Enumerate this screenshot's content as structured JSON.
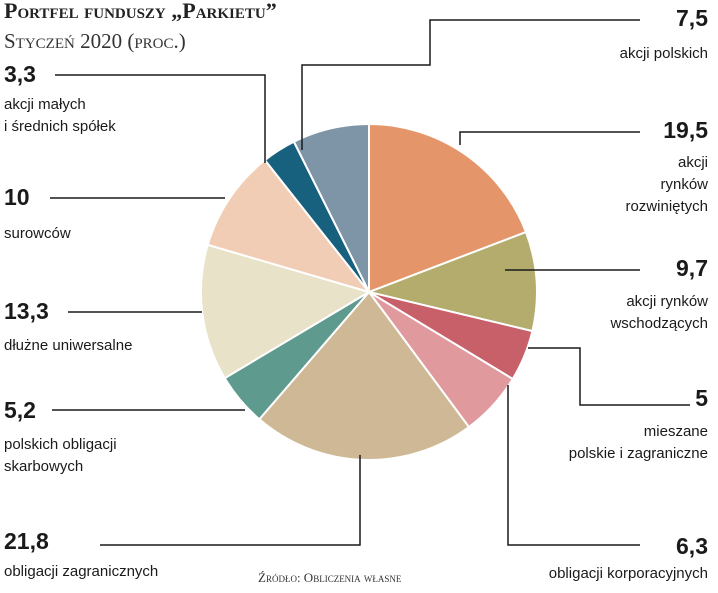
{
  "chart_data": {
    "type": "pie",
    "title": "Portfel funduszy „Parkietu”",
    "subtitle": "Styczeń 2020 (proc.)",
    "source": "Źródło: Obliczenia własne",
    "categories": [
      "akcji polskich",
      "akcji\nrynków\nrozwiniętych",
      "akcji rynków\nwschodzących",
      "mieszane\npolskie i zagraniczne",
      "obligacji korporacyjnych",
      "obligacji zagranicznych",
      "polskich obligacji\nskarbowych",
      "dłużne uniwersalne",
      "surowców",
      "akcji małych\ni średnich spółek"
    ],
    "values": [
      7.5,
      19.5,
      9.7,
      5,
      6.3,
      21.8,
      5.2,
      13.3,
      10,
      3.3
    ],
    "value_labels": [
      "7,5",
      "19,5",
      "9,7",
      "5",
      "6,3",
      "21,8",
      "5,2",
      "13,3",
      "10",
      "3,3"
    ],
    "colors": [
      "#7e95a8",
      "#e4966a",
      "#b3ac6c",
      "#c8606a",
      "#e09a9e",
      "#cfb896",
      "#5f9a8e",
      "#e8e2c8",
      "#f2cdb5",
      "#17607e"
    ]
  }
}
